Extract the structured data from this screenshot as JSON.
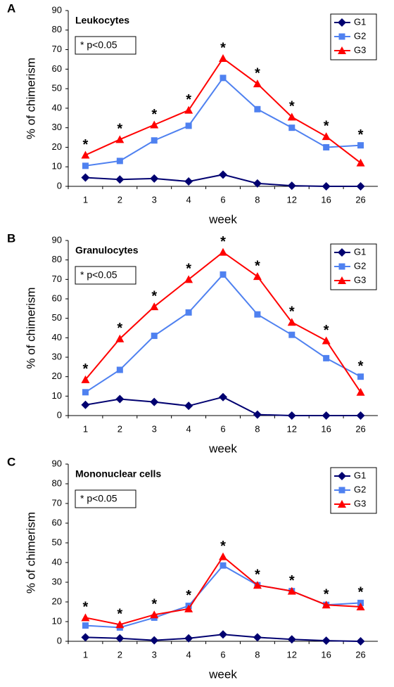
{
  "chart_data": [
    {
      "type": "line",
      "panel": "A",
      "title": "Leukocytes",
      "annotation": "* p<0.05",
      "x_label": "week",
      "y_label": "% of chimerism",
      "categories": [
        "1",
        "2",
        "3",
        "4",
        "6",
        "8",
        "12",
        "16",
        "26"
      ],
      "significance": [
        "*",
        "*",
        "*",
        "*",
        "*",
        "*",
        "*",
        "*",
        "*"
      ],
      "ylim": [
        0,
        90
      ],
      "yticks": [
        0,
        10,
        20,
        30,
        40,
        50,
        60,
        70,
        80,
        90
      ],
      "legend": "upper right",
      "series": [
        {
          "name": "G1",
          "color": "#000070",
          "marker": "diamond",
          "values": [
            4.5,
            3.5,
            4,
            2.5,
            6,
            1.5,
            0.3,
            0,
            0
          ]
        },
        {
          "name": "G2",
          "color": "#4f81f0",
          "marker": "square",
          "values": [
            10.5,
            13,
            23.5,
            31,
            55.5,
            39.5,
            30,
            20,
            21
          ]
        },
        {
          "name": "G3",
          "color": "#ff0000",
          "marker": "triangle",
          "values": [
            16,
            24,
            31.5,
            39,
            65.5,
            52.5,
            35.5,
            25.5,
            12
          ]
        }
      ]
    },
    {
      "type": "line",
      "panel": "B",
      "title": "Granulocytes",
      "annotation": "* p<0.05",
      "x_label": "week",
      "y_label": "% of chimerism",
      "categories": [
        "1",
        "2",
        "3",
        "4",
        "6",
        "8",
        "12",
        "16",
        "26"
      ],
      "significance": [
        "*",
        "*",
        "*",
        "*",
        "*",
        "*",
        "*",
        "*",
        "*"
      ],
      "ylim": [
        0,
        90
      ],
      "yticks": [
        0,
        10,
        20,
        30,
        40,
        50,
        60,
        70,
        80,
        90
      ],
      "legend": "upper right",
      "series": [
        {
          "name": "G1",
          "color": "#000070",
          "marker": "diamond",
          "values": [
            5.5,
            8.5,
            7,
            5,
            9.5,
            0.5,
            0,
            0,
            0
          ]
        },
        {
          "name": "G2",
          "color": "#4f81f0",
          "marker": "square",
          "values": [
            12,
            23.5,
            41,
            53,
            72.5,
            52,
            41.5,
            29.5,
            20
          ]
        },
        {
          "name": "G3",
          "color": "#ff0000",
          "marker": "triangle",
          "values": [
            18.5,
            39.5,
            56,
            70,
            84,
            71.5,
            48,
            38.5,
            12
          ]
        }
      ]
    },
    {
      "type": "line",
      "panel": "C",
      "title": "Mononuclear cells",
      "annotation": "* p<0.05",
      "x_label": "week",
      "y_label": "% of chimerism",
      "categories": [
        "1",
        "2",
        "3",
        "4",
        "6",
        "8",
        "12",
        "16",
        "26"
      ],
      "significance": [
        "*",
        "*",
        "*",
        "*",
        "*",
        "*",
        "*",
        "*",
        "*"
      ],
      "ylim": [
        0,
        90
      ],
      "yticks": [
        0,
        10,
        20,
        30,
        40,
        50,
        60,
        70,
        80,
        90
      ],
      "legend": "upper right",
      "series": [
        {
          "name": "G1",
          "color": "#000070",
          "marker": "diamond",
          "values": [
            2,
            1.5,
            0.5,
            1.5,
            3.5,
            2,
            1,
            0.3,
            0
          ]
        },
        {
          "name": "G2",
          "color": "#4f81f0",
          "marker": "square",
          "values": [
            8,
            7,
            12,
            18,
            38.5,
            28.5,
            25.5,
            18.5,
            19.5
          ]
        },
        {
          "name": "G3",
          "color": "#ff0000",
          "marker": "triangle",
          "values": [
            12,
            8.5,
            13.5,
            16.5,
            43,
            28.5,
            25.5,
            18.5,
            17.5
          ]
        }
      ]
    }
  ]
}
